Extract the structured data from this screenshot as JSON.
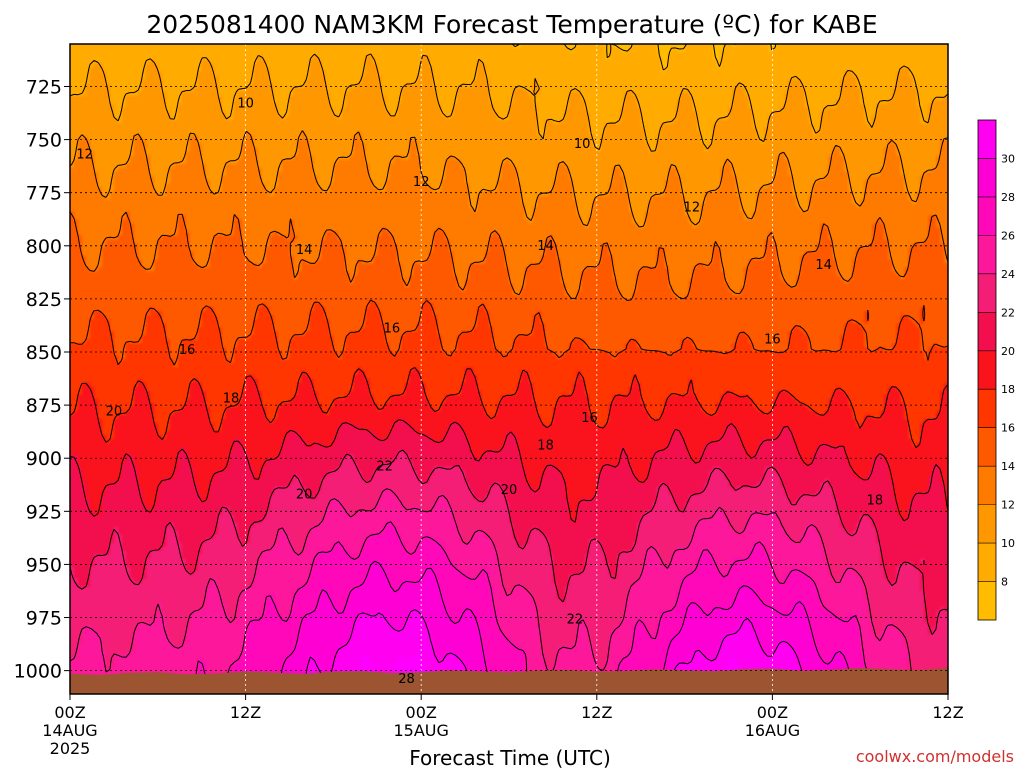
{
  "chart_data": {
    "type": "heatmap",
    "title": "2025081400 NAM3KM Forecast Temperature (ºC) for KABE",
    "xlabel": "Forecast Time (UTC)",
    "ylabel": "",
    "x_ticks": [
      {
        "hour": 0,
        "line1": "00Z",
        "line2": "14AUG",
        "line3": "2025"
      },
      {
        "hour": 12,
        "line1": "12Z",
        "line2": "",
        "line3": ""
      },
      {
        "hour": 24,
        "line1": "00Z",
        "line2": "15AUG",
        "line3": ""
      },
      {
        "hour": 36,
        "line1": "12Z",
        "line2": "",
        "line3": ""
      },
      {
        "hour": 48,
        "line1": "00Z",
        "line2": "16AUG",
        "line3": ""
      },
      {
        "hour": 60,
        "line1": "12Z",
        "line2": "",
        "line3": ""
      }
    ],
    "xlim": [
      0,
      60
    ],
    "y_ticks": [
      725,
      750,
      775,
      800,
      825,
      850,
      875,
      900,
      925,
      950,
      975,
      1000
    ],
    "ylim": [
      1011,
      705
    ],
    "grid": true,
    "colorbar": {
      "labels": [
        30,
        28,
        26,
        24,
        22,
        20,
        18,
        16,
        14,
        12,
        10,
        8
      ],
      "range": [
        6,
        32
      ],
      "placement": "right",
      "colors": [
        {
          "t": 6,
          "color": "#ffc400"
        },
        {
          "t": 8,
          "color": "#ffb300"
        },
        {
          "t": 10,
          "color": "#ffa200"
        },
        {
          "t": 12,
          "color": "#ff8c00"
        },
        {
          "t": 14,
          "color": "#ff6a00"
        },
        {
          "t": 16,
          "color": "#ff4800"
        },
        {
          "t": 18,
          "color": "#ff2400"
        },
        {
          "t": 20,
          "color": "#f5003a"
        },
        {
          "t": 22,
          "color": "#f01e60"
        },
        {
          "t": 24,
          "color": "#fa1e8c"
        },
        {
          "t": 26,
          "color": "#ff10aa"
        },
        {
          "t": 28,
          "color": "#ff00c8"
        },
        {
          "t": 30,
          "color": "#ff00e0"
        },
        {
          "t": 32,
          "color": "#ff00ff"
        }
      ]
    },
    "ground_color": "#9c5530",
    "contour_labels": [
      {
        "text": "10",
        "hour": 12.0,
        "p": 733
      },
      {
        "text": "10",
        "hour": 35.0,
        "p": 752
      },
      {
        "text": "12",
        "hour": 1.0,
        "p": 757
      },
      {
        "text": "12",
        "hour": 24.0,
        "p": 770
      },
      {
        "text": "12",
        "hour": 42.5,
        "p": 782
      },
      {
        "text": "14",
        "hour": 16.0,
        "p": 802
      },
      {
        "text": "14",
        "hour": 32.5,
        "p": 800
      },
      {
        "text": "14",
        "hour": 51.5,
        "p": 809
      },
      {
        "text": "16",
        "hour": 22.0,
        "p": 839
      },
      {
        "text": "16",
        "hour": 8.0,
        "p": 849
      },
      {
        "text": "16",
        "hour": 48.0,
        "p": 844
      },
      {
        "text": "16",
        "hour": 35.5,
        "p": 881
      },
      {
        "text": "18",
        "hour": 11.0,
        "p": 872
      },
      {
        "text": "18",
        "hour": 32.5,
        "p": 894
      },
      {
        "text": "18",
        "hour": 55.0,
        "p": 920
      },
      {
        "text": "20",
        "hour": 3.0,
        "p": 878
      },
      {
        "text": "20",
        "hour": 16.0,
        "p": 917
      },
      {
        "text": "20",
        "hour": 30.0,
        "p": 915
      },
      {
        "text": "22",
        "hour": 21.5,
        "p": 904
      },
      {
        "text": "22",
        "hour": 34.5,
        "p": 976
      },
      {
        "text": "28",
        "hour": 23.0,
        "p": 1004
      }
    ],
    "footer": "coolwx.com/models"
  }
}
